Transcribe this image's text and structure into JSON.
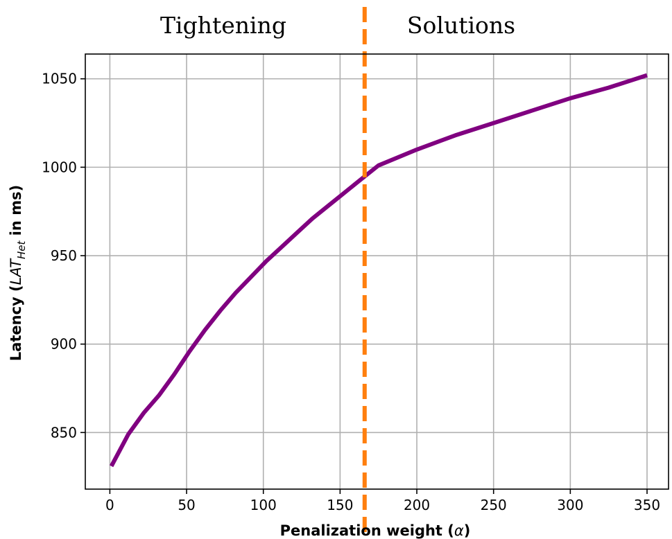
{
  "chart_data": {
    "type": "line",
    "xlabel_prefix": "Penalization weight (",
    "xlabel_symbol": "α",
    "xlabel_suffix": ")",
    "ylabel_prefix": "Latency (",
    "ylabel_math_main": "LAT",
    "ylabel_math_sub": "Het",
    "ylabel_suffix": " in ms)",
    "xlim": [
      -16,
      364
    ],
    "ylim": [
      818,
      1064
    ],
    "xticks": [
      0,
      50,
      100,
      150,
      200,
      250,
      300,
      350
    ],
    "yticks": [
      850,
      900,
      950,
      1000,
      1050
    ],
    "grid": true,
    "series": [
      {
        "color": "#800080",
        "x": [
          1,
          12,
          22,
          32,
          42,
          52,
          62,
          72,
          82,
          92,
          102,
          112,
          122,
          132,
          142,
          152,
          162,
          175,
          200,
          225,
          250,
          275,
          300,
          325,
          350
        ],
        "y": [
          831,
          849,
          861,
          871,
          883,
          896,
          908,
          919,
          929,
          938,
          947,
          955,
          963,
          971,
          978,
          985,
          992,
          1001,
          1010,
          1018,
          1025,
          1032,
          1039,
          1045,
          1052
        ]
      }
    ],
    "threshold": {
      "x": 166,
      "color": "#ff7f0e",
      "style": "dashed"
    },
    "regions": [
      {
        "label": "Tightening",
        "side": "left"
      },
      {
        "label": "Solutions",
        "side": "right"
      }
    ]
  }
}
